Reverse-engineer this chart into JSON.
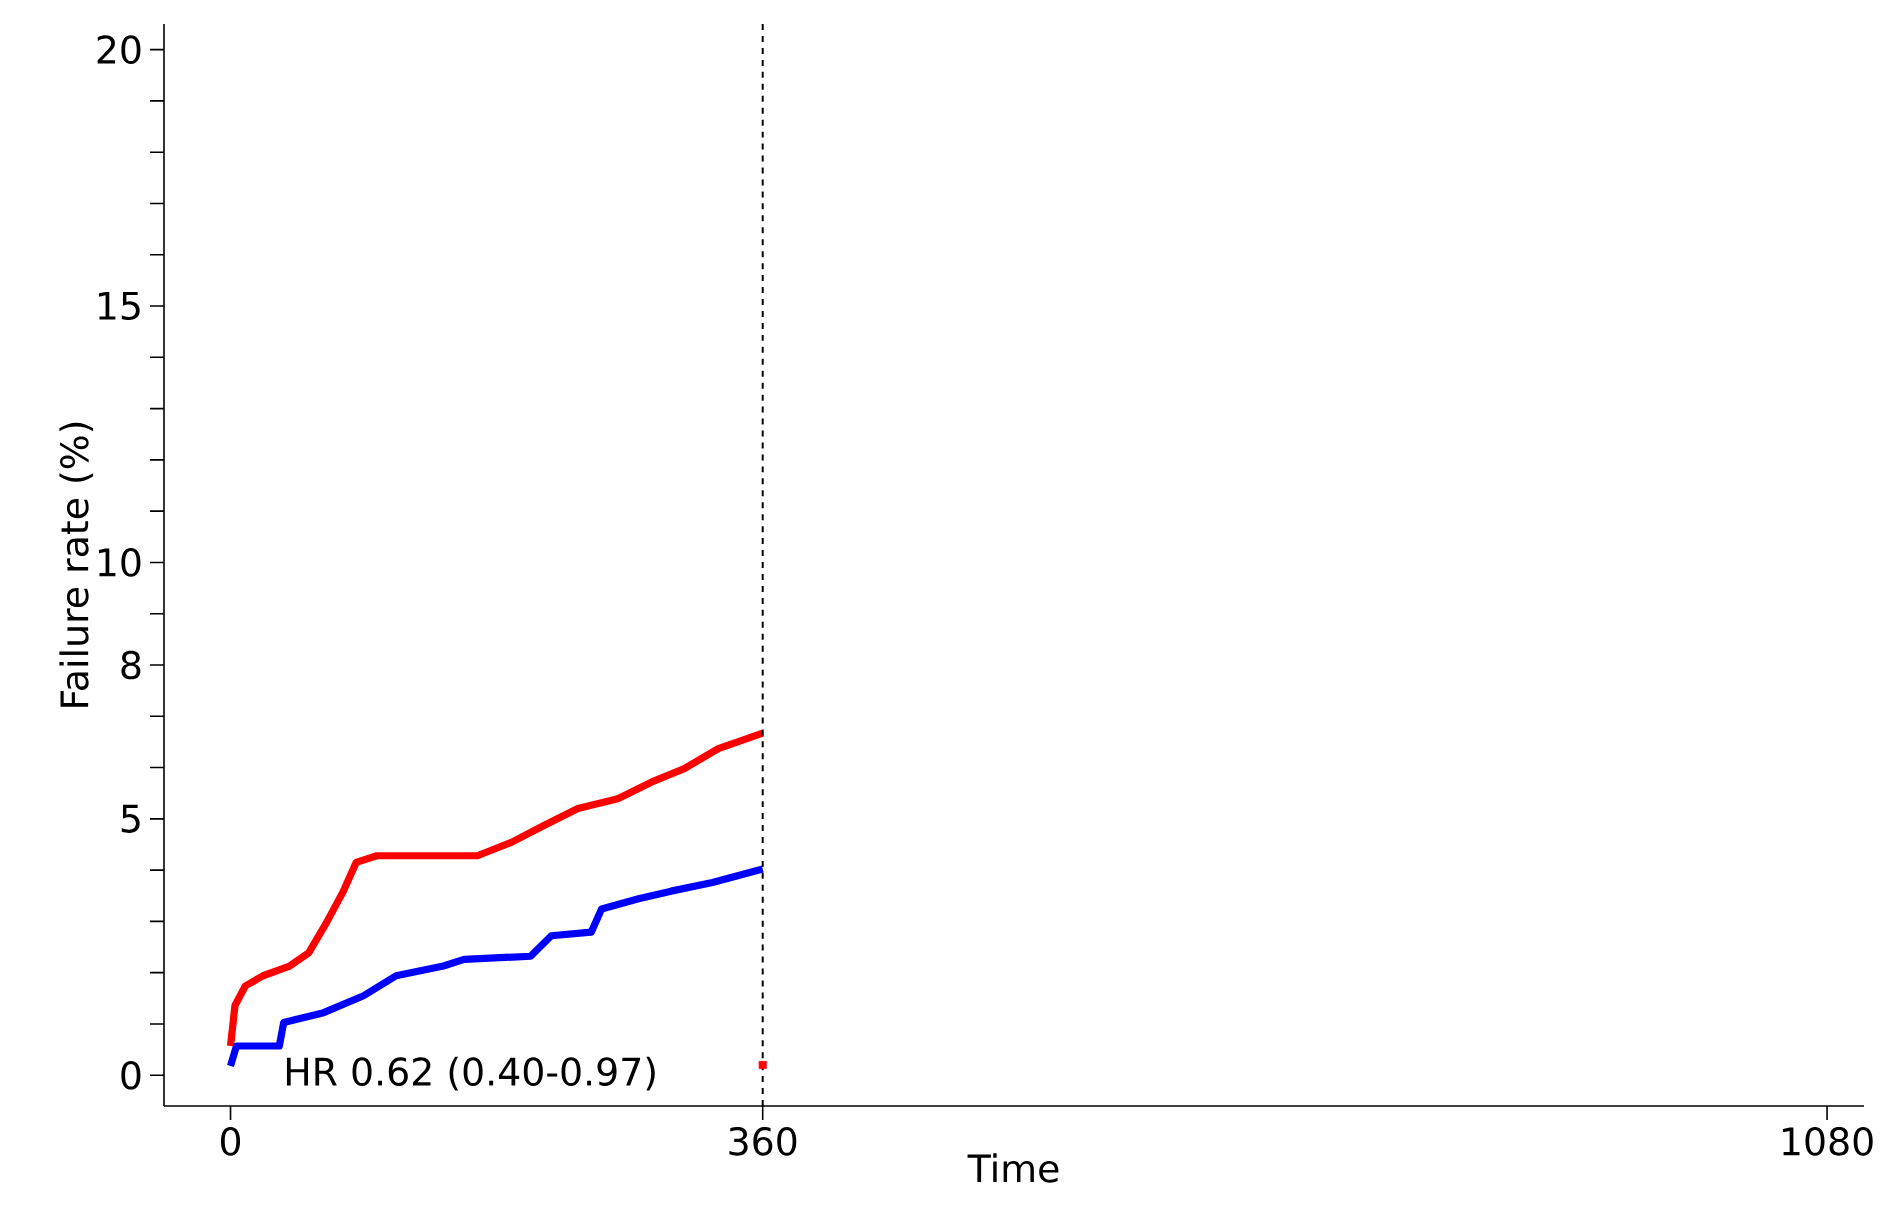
{
  "chart_data": {
    "type": "line",
    "xlabel": "Time",
    "ylabel": "Failure rate (%)",
    "annotations": [
      "HR 0.62 (0.40-0.97)"
    ],
    "xlim": [
      -45,
      1105
    ],
    "ylim": [
      -0.6,
      20.5
    ],
    "xticks": [
      0,
      360,
      1080
    ],
    "yticks": [
      0,
      {
        "value": 1,
        "label": null
      },
      {
        "value": 2,
        "label": null
      },
      {
        "value": 3,
        "label": null
      },
      {
        "value": 4,
        "label": null
      },
      5,
      {
        "value": 6,
        "label": null
      },
      {
        "value": 7,
        "label": null
      },
      8,
      {
        "value": 9,
        "label": null
      },
      10,
      {
        "value": 11,
        "label": null
      },
      {
        "value": 12,
        "label": null
      },
      {
        "value": 13,
        "label": null
      },
      {
        "value": 14,
        "label": null
      },
      15,
      {
        "value": 16,
        "label": null
      },
      {
        "value": 17,
        "label": null
      },
      {
        "value": 18,
        "label": null
      },
      {
        "value": 19,
        "label": null
      },
      20
    ],
    "grid": false,
    "line_style": "solid",
    "ref_lines": [
      {
        "axis": "x",
        "value": 360,
        "color": "#000000",
        "line_style": "dashed"
      }
    ],
    "series": [
      {
        "color": "#ff0000",
        "x": [
          0,
          3,
          10,
          22,
          40,
          53,
          65,
          76,
          85,
          99,
          167,
          190,
          212,
          235,
          262,
          285,
          307,
          330,
          360
        ],
        "values": [
          0.57,
          1.36,
          1.74,
          1.94,
          2.13,
          2.39,
          2.98,
          3.57,
          4.15,
          4.28,
          4.28,
          4.54,
          4.87,
          5.2,
          5.39,
          5.72,
          5.98,
          6.37,
          6.67
        ]
      },
      {
        "color": "#0000ff",
        "x": [
          0,
          4,
          33,
          36,
          63,
          90,
          112,
          144,
          158,
          203,
          217,
          244,
          251,
          276,
          298,
          326,
          360
        ],
        "values": [
          0.18,
          0.57,
          0.57,
          1.03,
          1.22,
          1.55,
          1.94,
          2.13,
          2.26,
          2.32,
          2.72,
          2.79,
          3.24,
          3.44,
          3.59,
          3.76,
          4.02
        ]
      },
      {
        "type": "scatter",
        "marker": "square",
        "color": "#ff0000",
        "x": [
          360
        ],
        "values": [
          0.2
        ]
      }
    ]
  }
}
